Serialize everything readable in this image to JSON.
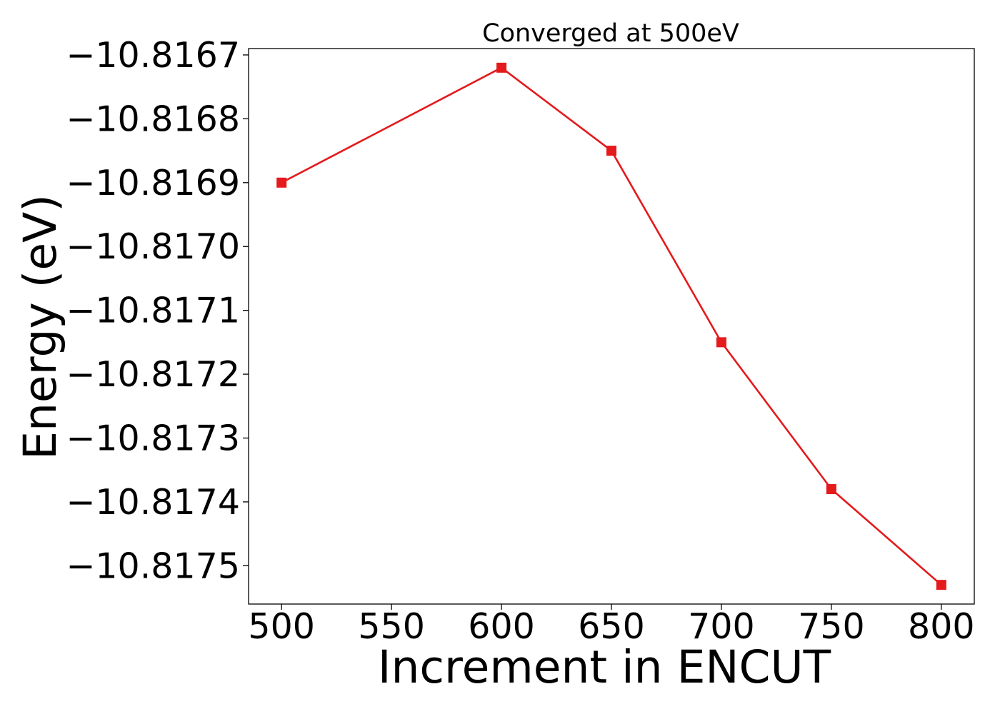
{
  "chart_data": {
    "type": "line",
    "title": "Converged at 500eV",
    "xlabel": "Increment in ENCUT",
    "ylabel": "Energy (eV)",
    "xlim": [
      485,
      815
    ],
    "ylim": [
      -10.81756,
      -10.81669
    ],
    "x_ticks": [
      500,
      550,
      600,
      650,
      700,
      750,
      800
    ],
    "x_tick_labels": [
      "500",
      "550",
      "600",
      "650",
      "700",
      "750",
      "800"
    ],
    "y_ticks": [
      -10.8167,
      -10.8168,
      -10.8169,
      -10.817,
      -10.8171,
      -10.8172,
      -10.8173,
      -10.8174,
      -10.8175
    ],
    "y_tick_labels": [
      "−10.8167",
      "−10.8168",
      "−10.8169",
      "−10.8170",
      "−10.8171",
      "−10.8172",
      "−10.8173",
      "−10.8174",
      "−10.8175"
    ],
    "grid": false,
    "series": [
      {
        "x": [
          500,
          600,
          650,
          700,
          750,
          800
        ],
        "y": [
          -10.8169,
          -10.81672,
          -10.81685,
          -10.81715,
          -10.81738,
          -10.81753
        ],
        "color": "#e41a1c",
        "marker": "square"
      }
    ]
  }
}
